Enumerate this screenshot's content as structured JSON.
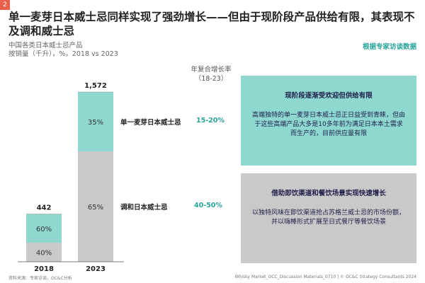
{
  "page_number": "2",
  "title": "单一麦芽日本威士忌同样实现了强劲增长——但由于现阶段产品供给有限，其表现不及调和威士忌",
  "subtitle_line1": "中国各类日本威士忌产品",
  "subtitle_line2": "按销量（千升），%，2018 vs 2023",
  "source_tag": "根据专家访谈数据",
  "cagr_header": "年复合增长率\n（18-23）",
  "chart_data": {
    "type": "bar",
    "stacked": true,
    "categories": [
      "2018",
      "2023"
    ],
    "totals": [
      442,
      1572
    ],
    "totals_labels": [
      "442",
      "1,572"
    ],
    "series": [
      {
        "name": "调和日本威士忌",
        "share_percent": [
          40,
          65
        ],
        "labels": [
          "40%",
          "65%"
        ],
        "color": "#c9c9c9",
        "cagr": "40-50%"
      },
      {
        "name": "单一麦芽日本威士忌",
        "share_percent": [
          60,
          35
        ],
        "labels": [
          "60%",
          "35%"
        ],
        "color": "#8ed8d0",
        "cagr": "15-20%"
      }
    ],
    "ylabel": "",
    "xlabel": ""
  },
  "cards": [
    {
      "heading": "现阶段逐渐受欢迎但供给有限",
      "body": "高端独特的单一麦芽日本威士忌正日益受到青睐，但由于这些高端产品大多是10多年前为满足日本本土需求而生产的，目前供应量有限"
    },
    {
      "heading": "借助即饮渠道和餐饮场景实现快速增长",
      "body": "以独特风味在即饮渠道抢占苏格兰威士忌的市场份额，并以嗨棒形式扩展至日式餐厅等餐饮场景"
    }
  ],
  "footer_left": "资料来源：专家访谈，OC&C分析",
  "footer_right": "Whisky Market_OCC_Discussion Materials_0710   |   © OC&C Strategy Consultants 2024"
}
